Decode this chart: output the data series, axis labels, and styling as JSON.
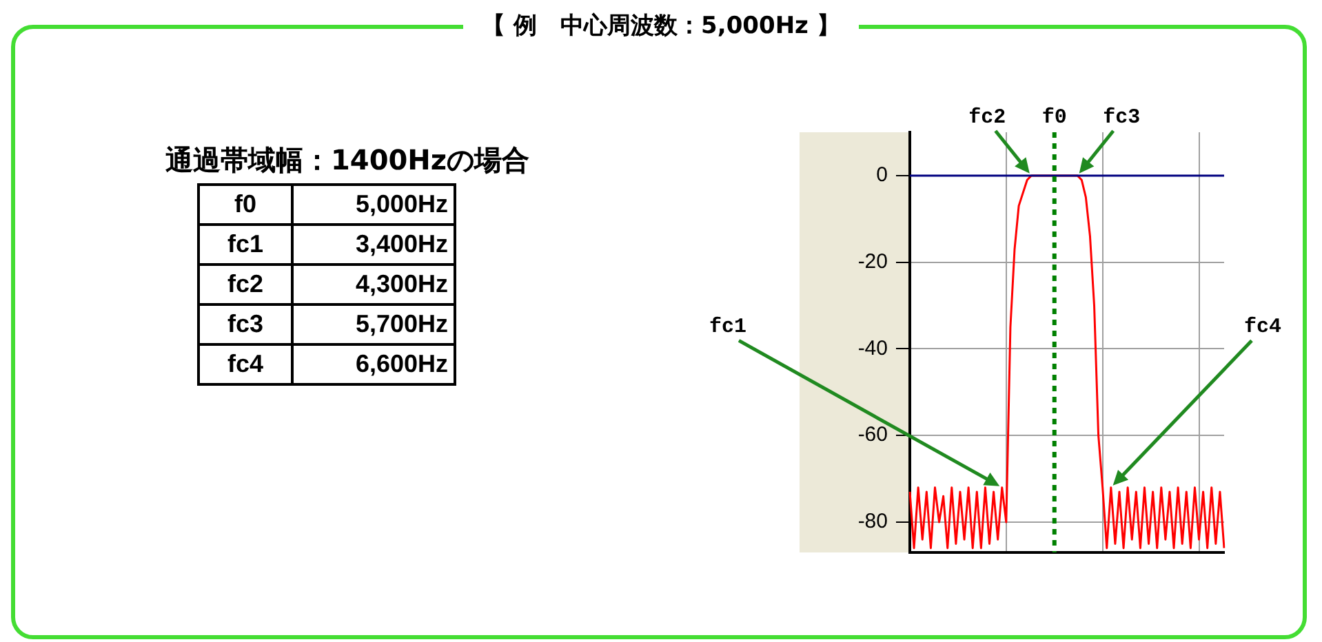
{
  "chart_data": {
    "type": "line",
    "title": "【 例　中心周波数：5,000Hz 】",
    "subtitle": "通過帯域幅：1400Hzの場合",
    "series": [
      {
        "color": "#ff0000",
        "values": [
          -73,
          -86,
          -72,
          -84,
          -73,
          -86,
          -72,
          -80,
          -74,
          -86,
          -72,
          -85,
          -73,
          -84,
          -72,
          -86,
          -73,
          -86,
          -72,
          -85,
          -73,
          -84,
          -72,
          -80,
          -35,
          -17,
          -7,
          -4,
          -1,
          0,
          0,
          0,
          0,
          0,
          0,
          0,
          0,
          0,
          0,
          0,
          0,
          -1,
          -5,
          -14,
          -30,
          -60,
          -72,
          -86,
          -72,
          -85,
          -73,
          -86,
          -72,
          -84,
          -73,
          -86,
          -72,
          -85,
          -73,
          -86,
          -72,
          -84,
          -73,
          -86,
          -72,
          -85,
          -73,
          -86,
          -72,
          -84,
          -73,
          -86,
          -72,
          -85,
          -73,
          -86
        ]
      }
    ],
    "categories": [
      null,
      null,
      null,
      null,
      null,
      null,
      null,
      null,
      null,
      null,
      null,
      null,
      null,
      null,
      null,
      null,
      null,
      null,
      null,
      null,
      null,
      null,
      null,
      null,
      null,
      null,
      null,
      null,
      null,
      null,
      null,
      null,
      null,
      null,
      null,
      null,
      null,
      null,
      null,
      null,
      null,
      null,
      null,
      null,
      null,
      null,
      null,
      null,
      null,
      null,
      null,
      null,
      null,
      null,
      null,
      null,
      null,
      null,
      null,
      null,
      null,
      null,
      null,
      null,
      null,
      null,
      null,
      null,
      null,
      null,
      null,
      null,
      null,
      null,
      null,
      null
    ],
    "ylim": [
      -87,
      10
    ],
    "yticks": [
      0,
      -20,
      -40,
      -60,
      -80
    ],
    "tick_labels": "y",
    "grid": true,
    "legend": false,
    "marker": "none",
    "line_style": "solid",
    "ref_lines": [
      {
        "axis": "y",
        "value": 0,
        "color": "#000080",
        "line_style": "solid"
      },
      {
        "axis": "x",
        "label": "f0",
        "color": "#008000",
        "line_style": "dotted"
      }
    ],
    "annotations": [
      "f0",
      "5,000Hz",
      "fc1",
      "3,400Hz",
      "fc2",
      "4,300Hz",
      "fc3",
      "5,700Hz",
      "fc4",
      "6,600Hz",
      {
        "text": "fc1"
      },
      {
        "text": "fc2",
        "y": 0
      },
      {
        "text": "fc3",
        "y": 0
      },
      {
        "text": "fc4"
      }
    ]
  }
}
